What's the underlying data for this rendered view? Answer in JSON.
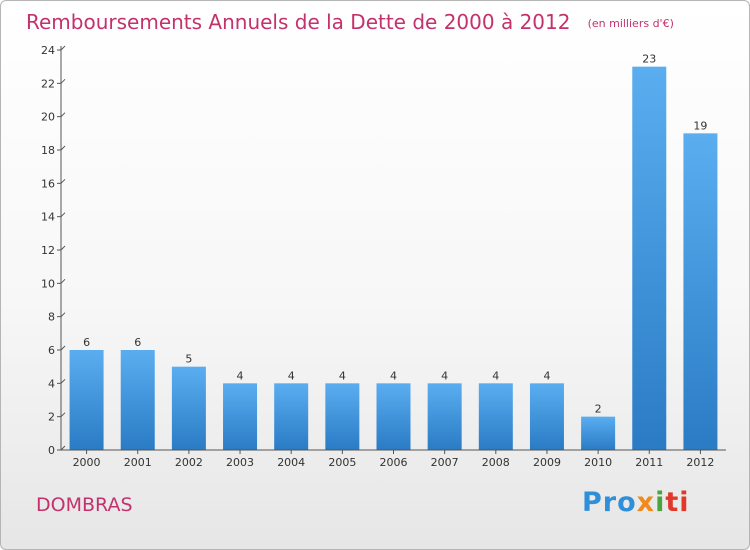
{
  "header": {
    "title": "Remboursements Annuels de la Dette de 2000 à 2012",
    "unit": "(en milliers d'€)"
  },
  "footer": {
    "commune": "DOMBRAS",
    "logo": [
      "Pro",
      "x",
      "i",
      "ti"
    ]
  },
  "colors": {
    "title": "#c4316b",
    "bar_top": "#5aaef0",
    "bar_bottom": "#2a7bc4",
    "axis": "#555555"
  },
  "chart_data": {
    "type": "bar",
    "title": "Remboursements Annuels de la Dette de 2000 à 2012",
    "ylabel": "",
    "xlabel": "",
    "categories": [
      "2000",
      "2001",
      "2002",
      "2003",
      "2004",
      "2005",
      "2006",
      "2007",
      "2008",
      "2009",
      "2010",
      "2011",
      "2012"
    ],
    "values": [
      6,
      6,
      5,
      4,
      4,
      4,
      4,
      4,
      4,
      4,
      2,
      23,
      19
    ],
    "ylim": [
      0,
      24
    ],
    "yticks": [
      0,
      2,
      4,
      6,
      8,
      10,
      12,
      14,
      16,
      18,
      20,
      22,
      24
    ],
    "grid": false,
    "data_labels": true
  }
}
